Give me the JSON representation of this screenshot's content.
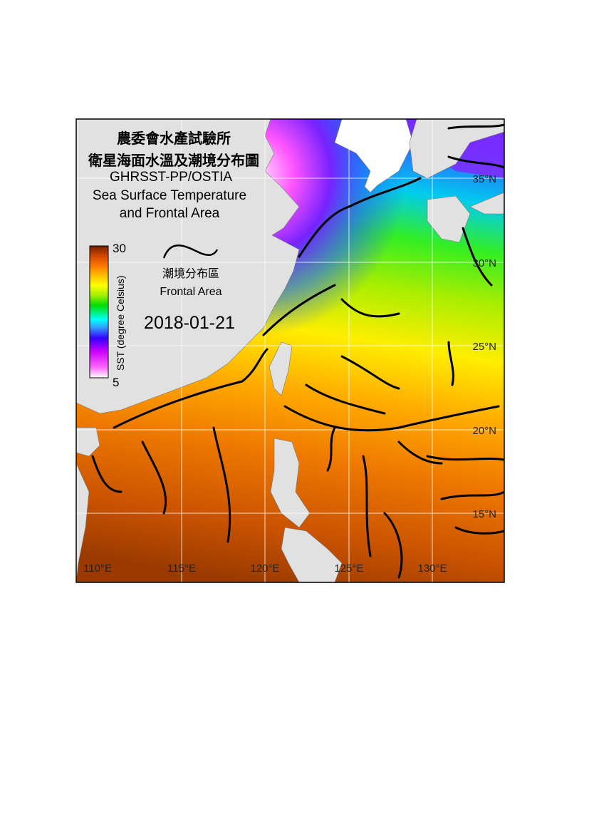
{
  "title": {
    "line1": "農委會水產試驗所",
    "line2": "衛星海面水溫及潮境分布圖",
    "line3": "GHRSST-PP/OSTIA",
    "line4": "Sea Surface Temperature",
    "line5": "and Frontal Area"
  },
  "legend": {
    "front_label_zh": "潮境分布區",
    "front_label_en": "Frontal Area",
    "front_icon": "black-wavy-line"
  },
  "date": "2018-01-21",
  "colorbar": {
    "label": "SST (degree Celsius)",
    "min": 5,
    "max": 30,
    "min_label": "5",
    "max_label": "30",
    "colors": [
      "#ffffff",
      "#ff66ff",
      "#cc00ff",
      "#3300ff",
      "#3399ff",
      "#00ffff",
      "#00dd00",
      "#99ee00",
      "#ffff00",
      "#ffbb00",
      "#ff7700",
      "#cc4400",
      "#702000"
    ]
  },
  "axes": {
    "lon_ticks": [
      "110°E",
      "115°E",
      "120°E",
      "125°E",
      "130°E"
    ],
    "lat_ticks": [
      "35°N",
      "30°N",
      "25°N",
      "20°N",
      "15°N"
    ],
    "lon_range": [
      109.4,
      134.9
    ],
    "lat_range": [
      9.8,
      37.4
    ]
  },
  "colors": {
    "land": "#e1e1e1",
    "front": "#000000",
    "grid": "#ffffff"
  }
}
